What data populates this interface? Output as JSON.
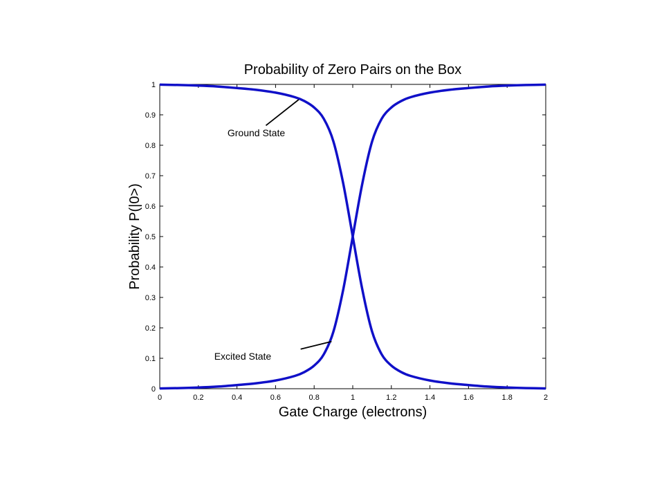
{
  "chart_data": {
    "type": "line",
    "title": "Probability of Zero Pairs on the Box",
    "xlabel": "Gate Charge (electrons)",
    "ylabel": "Probability P(|0>)",
    "xlim": [
      0,
      2
    ],
    "ylim": [
      0,
      1
    ],
    "x_ticks": [
      "0",
      "0.2",
      "0.4",
      "0.6",
      "0.8",
      "1",
      "1.2",
      "1.4",
      "1.6",
      "1.8",
      "2"
    ],
    "y_ticks": [
      "0",
      "0.1",
      "0.2",
      "0.3",
      "0.4",
      "0.5",
      "0.6",
      "0.7",
      "0.8",
      "0.9",
      "1"
    ],
    "grid": false,
    "series_color": "#1010c8",
    "series": [
      {
        "x": [
          0,
          0.1,
          0.2,
          0.3,
          0.4,
          0.5,
          0.6,
          0.7,
          0.75,
          0.8,
          0.85,
          0.9,
          0.95,
          1.0,
          1.05,
          1.1,
          1.15,
          1.2,
          1.25,
          1.3,
          1.4,
          1.5,
          1.6,
          1.7,
          1.8,
          1.9,
          2.0
        ],
        "y": [
          0.999,
          0.998,
          0.996,
          0.993,
          0.988,
          0.982,
          0.973,
          0.958,
          0.945,
          0.924,
          0.887,
          0.812,
          0.676,
          0.5,
          0.324,
          0.188,
          0.113,
          0.076,
          0.055,
          0.042,
          0.027,
          0.018,
          0.012,
          0.007,
          0.004,
          0.002,
          0.001
        ]
      },
      {
        "x": [
          0,
          0.1,
          0.2,
          0.3,
          0.4,
          0.5,
          0.6,
          0.7,
          0.75,
          0.8,
          0.85,
          0.9,
          0.95,
          1.0,
          1.05,
          1.1,
          1.15,
          1.2,
          1.25,
          1.3,
          1.4,
          1.5,
          1.6,
          1.7,
          1.8,
          1.9,
          2.0
        ],
        "y": [
          0.001,
          0.002,
          0.004,
          0.007,
          0.012,
          0.018,
          0.027,
          0.042,
          0.055,
          0.076,
          0.113,
          0.188,
          0.324,
          0.5,
          0.676,
          0.812,
          0.887,
          0.924,
          0.945,
          0.958,
          0.973,
          0.982,
          0.988,
          0.993,
          0.996,
          0.998,
          0.999
        ]
      }
    ],
    "annotations": [
      {
        "text": "Ground State",
        "x": 0.5,
        "y": 0.83,
        "arrow_from": [
          0.55,
          0.865
        ],
        "arrow_to": [
          0.72,
          0.95
        ]
      },
      {
        "text": "Excited State",
        "x": 0.43,
        "y": 0.095,
        "arrow_from": [
          0.73,
          0.13
        ],
        "arrow_to": [
          0.89,
          0.155
        ]
      }
    ]
  }
}
